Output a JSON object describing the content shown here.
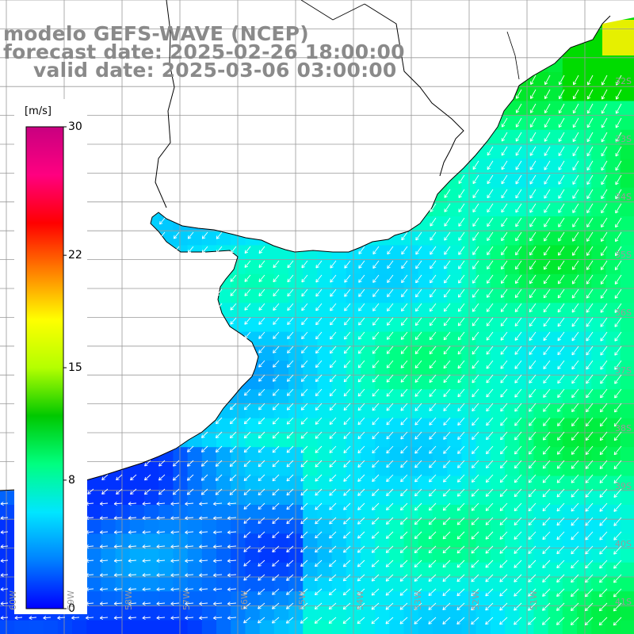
{
  "title": {
    "line1": "modelo GEFS-WAVE (NCEP)",
    "line2": "forecast date: 2025-02-26 18:00:00",
    "line3": "valid date: 2025-03-06 03:00:00"
  },
  "colorbar": {
    "unit": "[m/s]",
    "ticks": [
      "30",
      "22",
      "15",
      "8",
      "0"
    ],
    "tick_values": [
      30,
      22,
      15,
      8,
      0
    ],
    "min": 0,
    "max": 30,
    "colors": [
      "#0000ff",
      "#0080ff",
      "#00e6ff",
      "#00ff80",
      "#00c800",
      "#b4ff00",
      "#ffff00",
      "#ff8000",
      "#ff0000",
      "#ff0080",
      "#c80080"
    ]
  },
  "lat_labels": [
    "32S",
    "33S",
    "34S",
    "35S",
    "36S",
    "37S",
    "38S",
    "39S",
    "40S",
    "41S"
  ],
  "lon_labels": [
    "60W",
    "59W",
    "58W",
    "57W",
    "56W",
    "55W",
    "54W",
    "53W",
    "52W",
    "51W"
  ],
  "map": {
    "grid_color": "#999999",
    "land_color": "#ffffff",
    "coast_color": "#000000",
    "arrow_color": "#ffffff",
    "wind_direction": "mostly from the northeast"
  }
}
